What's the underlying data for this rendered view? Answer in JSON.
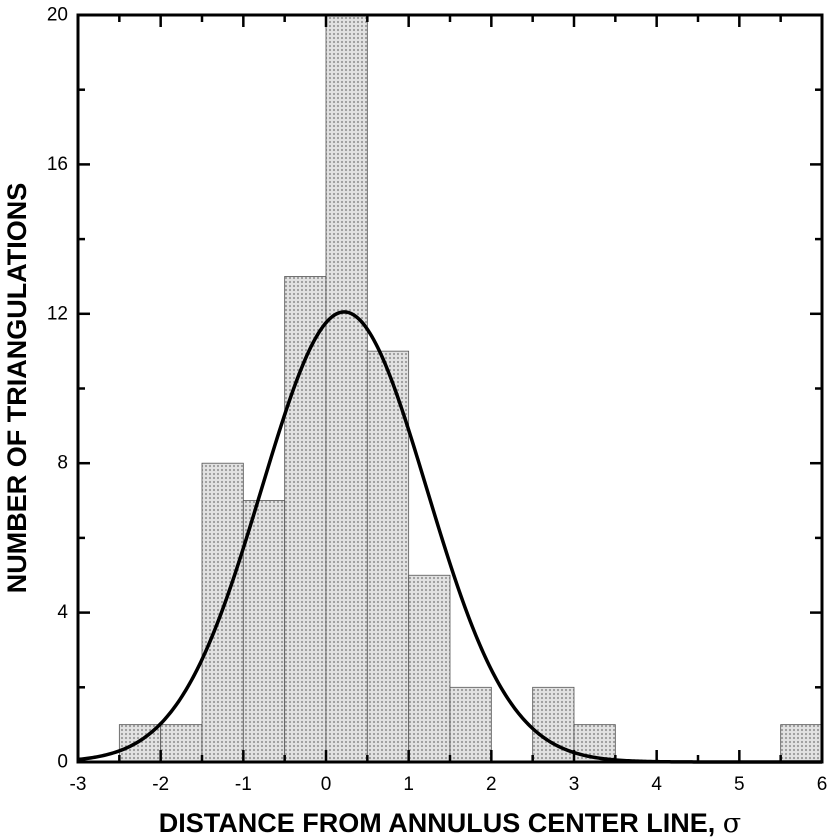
{
  "chart_data": {
    "type": "bar",
    "title": "",
    "xlabel": "DISTANCE FROM ANNULUS CENTER LINE,",
    "xlabel_symbol": "σ",
    "ylabel": "NUMBER OF TRIANGULATIONS",
    "xlim": [
      -3,
      6
    ],
    "ylim": [
      0,
      20
    ],
    "x_ticks": [
      "-3",
      "-2",
      "-1",
      "0",
      "1",
      "2",
      "3",
      "4",
      "5",
      "6"
    ],
    "y_ticks": [
      "0",
      "4",
      "8",
      "12",
      "16",
      "20"
    ],
    "bin_width": 0.5,
    "bins": [
      {
        "left": -2.5,
        "value": 1
      },
      {
        "left": -2.0,
        "value": 1
      },
      {
        "left": -1.5,
        "value": 8
      },
      {
        "left": -1.0,
        "value": 7
      },
      {
        "left": -0.5,
        "value": 13
      },
      {
        "left": 0.0,
        "value": 20
      },
      {
        "left": 0.5,
        "value": 11
      },
      {
        "left": 1.0,
        "value": 5
      },
      {
        "left": 1.5,
        "value": 2
      },
      {
        "left": 2.5,
        "value": 2
      },
      {
        "left": 3.0,
        "value": 1
      },
      {
        "left": 5.5,
        "value": 1
      }
    ],
    "fit_curve": {
      "type": "gaussian",
      "amplitude": 12.05,
      "mean": 0.22,
      "sigma": 1.0
    },
    "bar_color": "#d6d6d6",
    "curve_color": "#000000"
  }
}
